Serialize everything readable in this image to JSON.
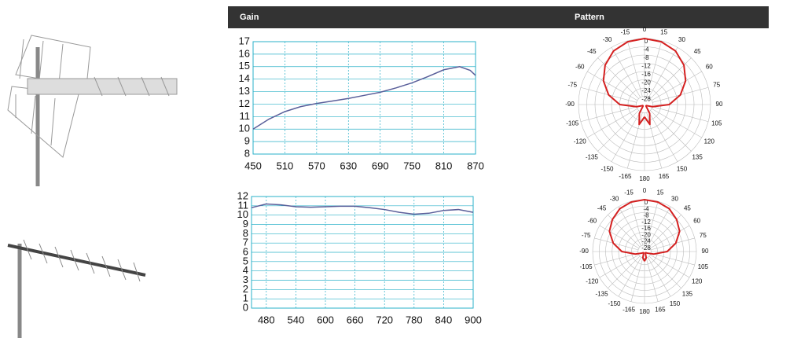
{
  "header": {
    "gain": "Gain",
    "pattern": "Pattern"
  },
  "chart_data": [
    {
      "type": "line",
      "color": "#5a5f9a",
      "x": [
        450,
        480,
        510,
        540,
        570,
        600,
        630,
        660,
        690,
        720,
        750,
        780,
        810,
        840,
        860,
        870
      ],
      "values": [
        10,
        10.8,
        11.4,
        11.8,
        12.05,
        12.25,
        12.45,
        12.7,
        12.95,
        13.3,
        13.7,
        14.2,
        14.75,
        15,
        14.7,
        14.3
      ],
      "xlim": [
        450,
        870
      ],
      "xticks": [
        450,
        510,
        570,
        630,
        690,
        750,
        810,
        870
      ],
      "ylim": [
        8,
        17
      ],
      "yticks": [
        8,
        9,
        10,
        11,
        12,
        13,
        14,
        15,
        16,
        17
      ],
      "grid": true
    },
    {
      "type": "line",
      "color": "#5a5f9a",
      "x": [
        450,
        480,
        510,
        540,
        570,
        600,
        630,
        660,
        690,
        720,
        750,
        780,
        810,
        840,
        870,
        900
      ],
      "values": [
        10.8,
        11.2,
        11.1,
        10.9,
        10.85,
        10.9,
        10.95,
        10.95,
        10.8,
        10.6,
        10.3,
        10.1,
        10.2,
        10.5,
        10.6,
        10.3
      ],
      "xlim": [
        450,
        900
      ],
      "xticks": [
        480,
        540,
        600,
        660,
        720,
        780,
        840,
        900
      ],
      "ylim": [
        0,
        12
      ],
      "yticks": [
        0,
        1,
        2,
        3,
        4,
        5,
        6,
        7,
        8,
        9,
        10,
        11,
        12
      ],
      "grid": true
    },
    {
      "type": "polar",
      "color": "#d42020",
      "theta": [
        -180,
        -165,
        -150,
        -135,
        -120,
        -105,
        -90,
        -75,
        -60,
        -45,
        -30,
        -15,
        0,
        15,
        30,
        45,
        60,
        75,
        90,
        105,
        120,
        135,
        150,
        165,
        180
      ],
      "values": [
        -26,
        -22,
        -27,
        -31,
        -31,
        -28,
        -20,
        -14,
        -9,
        -5,
        -2,
        -0.5,
        0,
        -0.5,
        -2,
        -5,
        -9,
        -14,
        -20,
        -28,
        -31,
        -31,
        -27,
        -22,
        -26
      ],
      "rlim": [
        -32,
        0
      ],
      "rticks": [
        0,
        -4,
        -8,
        -12,
        -16,
        -20,
        -24,
        -28
      ],
      "thetaticks": [
        -165,
        -150,
        -135,
        -120,
        -105,
        -90,
        -75,
        -60,
        -45,
        -30,
        -15,
        0,
        15,
        30,
        45,
        60,
        75,
        90,
        105,
        120,
        135,
        150,
        165,
        180
      ]
    },
    {
      "type": "polar",
      "color": "#d42020",
      "theta": [
        -180,
        -165,
        -150,
        -135,
        -120,
        -105,
        -90,
        -75,
        -60,
        -45,
        -30,
        -15,
        0,
        15,
        30,
        45,
        60,
        75,
        90,
        105,
        120,
        135,
        150,
        165,
        180
      ],
      "values": [
        -26,
        -28,
        -31,
        -31,
        -30,
        -26,
        -18,
        -12,
        -7,
        -4,
        -1.5,
        -0.4,
        0,
        -0.4,
        -1.5,
        -4,
        -7,
        -12,
        -18,
        -26,
        -30,
        -31,
        -31,
        -28,
        -26
      ],
      "rlim": [
        -32,
        0
      ],
      "rticks": [
        0,
        -4,
        -8,
        -12,
        -16,
        -20,
        -24,
        -28
      ],
      "thetaticks": [
        -165,
        -150,
        -135,
        -120,
        -105,
        -90,
        -75,
        -60,
        -45,
        -30,
        -15,
        0,
        15,
        30,
        45,
        60,
        75,
        90,
        105,
        120,
        135,
        150,
        165,
        180
      ]
    }
  ]
}
